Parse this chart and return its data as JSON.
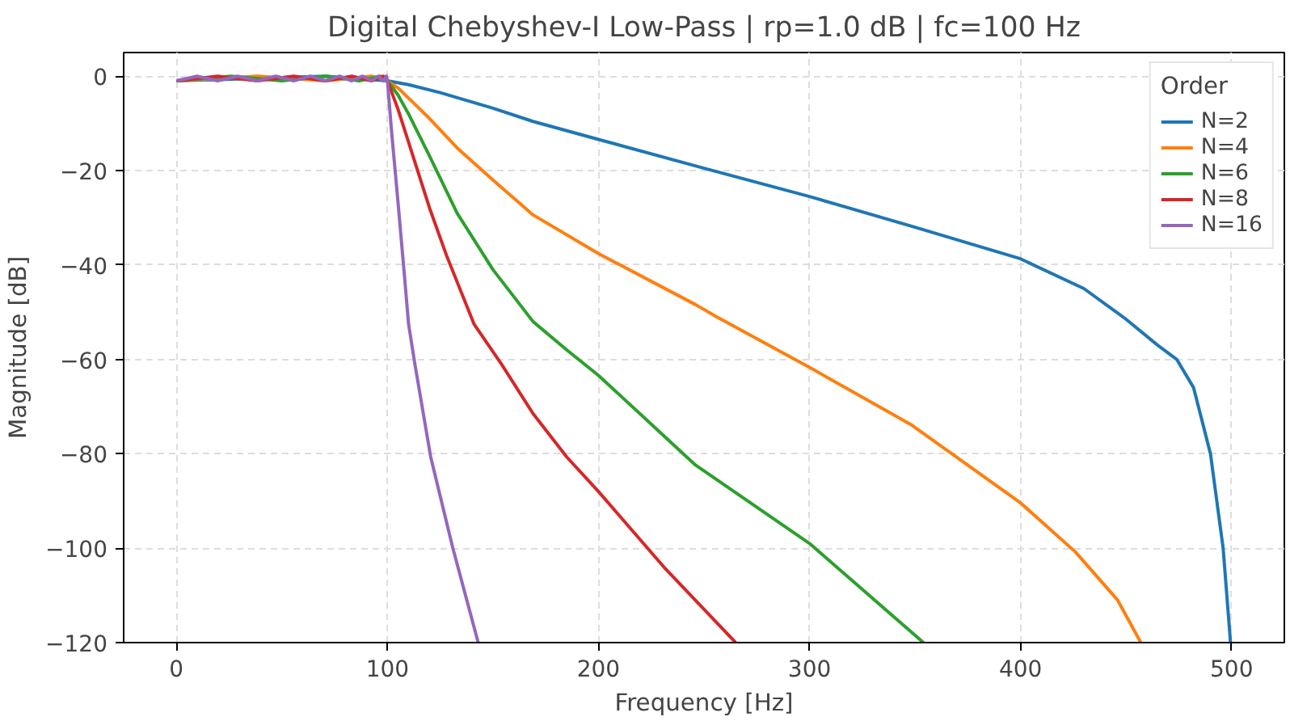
{
  "chart_data": {
    "type": "line",
    "title": "Digital Chebyshev-I Low-Pass | rp=1.0 dB | fc=100 Hz",
    "xlabel": "Frequency [Hz]",
    "ylabel": "Magnitude [dB]",
    "legend_title": "Order",
    "legend": "top right",
    "grid": true,
    "line_style": "solid",
    "xlim": [
      -25,
      525
    ],
    "ylim": [
      -120,
      5
    ],
    "xticks": [
      0,
      100,
      200,
      300,
      400,
      500
    ],
    "yticks": [
      -120,
      -100,
      -80,
      -60,
      -40,
      -20,
      0
    ],
    "series": [
      {
        "name": "N=2",
        "color": "#1f77b4",
        "x": [
          0,
          70.7,
          100,
          110,
          125,
          150,
          169,
          200,
          250,
          300,
          350,
          400,
          430,
          450,
          465,
          474,
          482,
          490,
          496,
          499.5
        ],
        "values": [
          -1,
          0,
          -1,
          -1.8,
          -3.5,
          -6.8,
          -9.6,
          -13.4,
          -19.5,
          -25.5,
          -32,
          -38.7,
          -45,
          -51.5,
          -57,
          -60,
          -66,
          -80,
          -100,
          -120
        ]
      },
      {
        "name": "N=4",
        "color": "#ff7f0e",
        "x": [
          0,
          38.3,
          70.7,
          92.4,
          100,
          105,
          112,
          120,
          133,
          150,
          169,
          200,
          246,
          256,
          300,
          348,
          400,
          426,
          446,
          457
        ],
        "values": [
          -1,
          0,
          -1,
          0,
          -1,
          -2.5,
          -5.5,
          -9,
          -15.2,
          -22,
          -29.4,
          -37.6,
          -48.4,
          -51,
          -61.7,
          -73.8,
          -90.4,
          -100.8,
          -111,
          -120
        ]
      },
      {
        "name": "N=6",
        "color": "#2ca02c",
        "x": [
          0,
          25.9,
          50,
          70.7,
          86.6,
          96.6,
          100,
          105,
          110,
          120,
          133,
          150,
          169,
          185,
          200,
          246,
          300,
          354
        ],
        "values": [
          -1,
          0,
          -1,
          0,
          -1,
          0,
          -1,
          -4,
          -8,
          -17,
          -29,
          -41,
          -52,
          -58,
          -63.4,
          -82.4,
          -99,
          -120
        ]
      },
      {
        "name": "N=8",
        "color": "#d62728",
        "x": [
          0,
          19.5,
          38.3,
          55.6,
          70.7,
          83.1,
          92.4,
          98.1,
          100,
          105,
          110,
          120,
          128,
          141,
          154,
          169,
          185,
          200,
          231,
          265
        ],
        "values": [
          -1,
          0,
          -1,
          0,
          -1,
          0,
          -1,
          0,
          -1,
          -7,
          -14,
          -28,
          -38,
          -52.5,
          -61,
          -71.5,
          -80.7,
          -88,
          -104,
          -120
        ]
      },
      {
        "name": "N=16",
        "color": "#9467bd",
        "x": [
          0,
          9.8,
          19.5,
          29,
          38.3,
          47.1,
          55.6,
          63.4,
          70.7,
          77.3,
          83.1,
          88.2,
          92.4,
          95.7,
          98.1,
          99.5,
          100,
          102,
          105,
          108,
          110,
          113,
          120.5,
          131,
          143
        ],
        "values": [
          -1,
          0,
          -1,
          0,
          -1,
          0,
          -1,
          0,
          -1,
          0,
          -1,
          0,
          -1,
          0,
          -1,
          0,
          -1,
          -12,
          -26.7,
          -42,
          -52.5,
          -61,
          -80.7,
          -100,
          -120
        ]
      }
    ]
  }
}
